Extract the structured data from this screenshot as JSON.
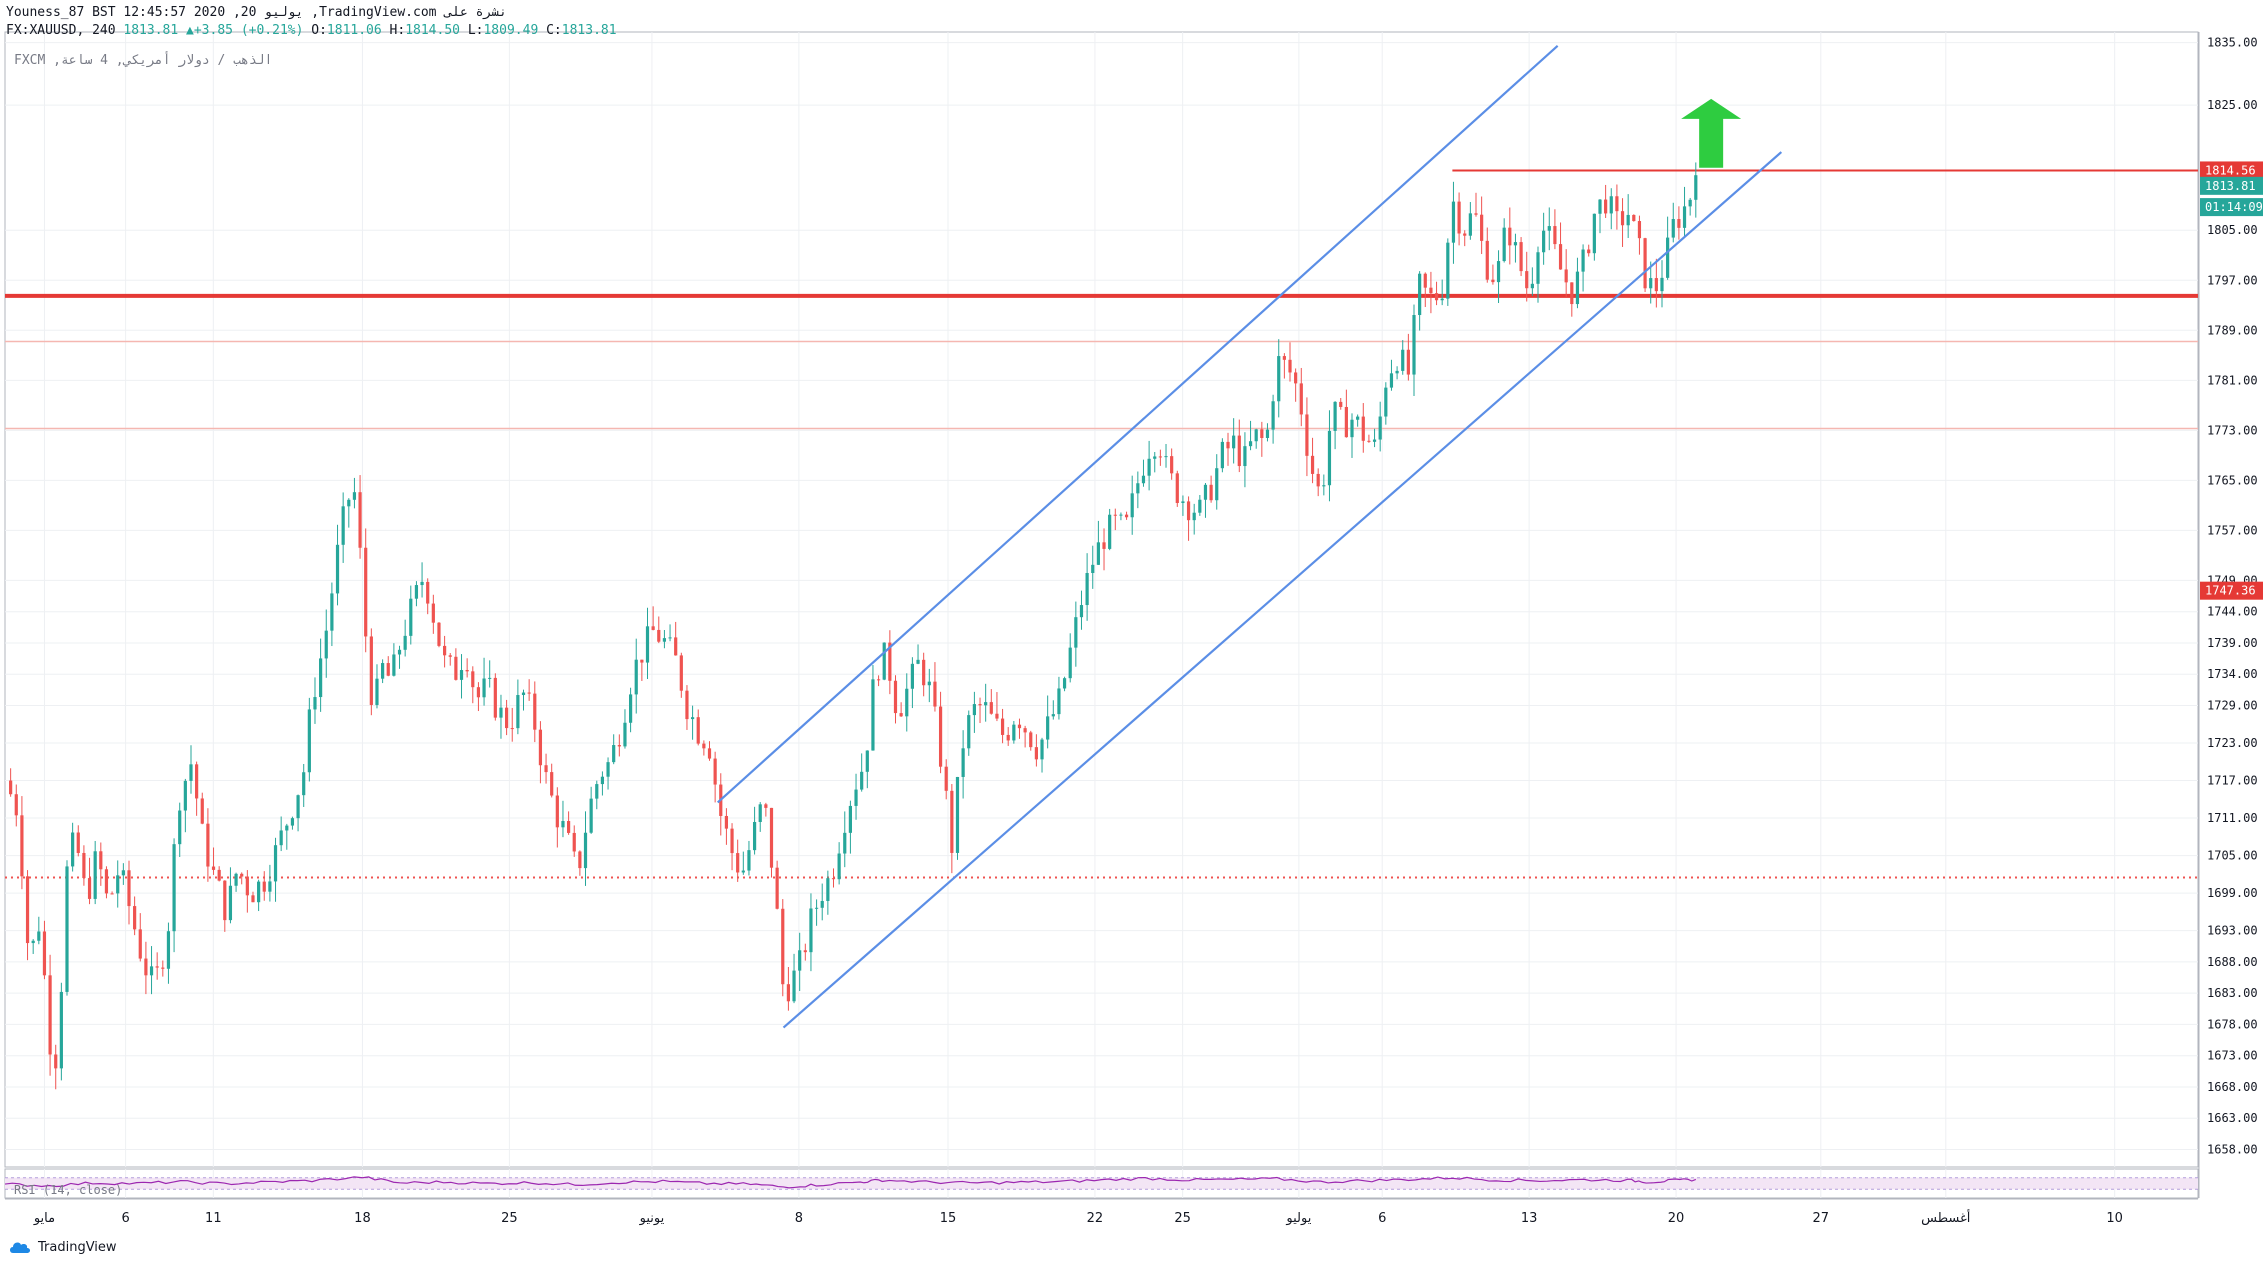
{
  "header": {
    "line1": "Youness_87 BST 12:45:57 2020 ,20 يوليو ,TradingView.com نشرة على",
    "symbol": "FX:XAUUSD, 240",
    "last": "1813.81",
    "change": "+3.85 (+0.21%)",
    "o_label": "O:",
    "o_val": "1811.06",
    "h_label": "H:",
    "h_val": "1814.50",
    "l_label": "L:",
    "l_val": "1809.49",
    "c_label": "C:",
    "c_val": "1813.81"
  },
  "pane_label": "FXCM ,الذهب / دولار أمريكي, 4 ساعة",
  "rsi_label": "RSI (14, close)",
  "brand": "TradingView",
  "colors": {
    "up": "#26a69a",
    "down": "#ef5350",
    "channel": "#5b8ee6",
    "support": "#e53935",
    "resistance": "#e53935",
    "arrow": "#2ecc40",
    "rsi": "#9c27b0",
    "rsi_band": "#f3e5f5",
    "grid": "#eef0f3"
  },
  "chart_data": {
    "type": "candlestick",
    "price_axis_ticks": [
      1835,
      1825,
      1814.56,
      1813.81,
      1805,
      1797,
      1789,
      1781,
      1773,
      1765,
      1757,
      1749,
      1747.36,
      1744,
      1739,
      1734,
      1729,
      1723,
      1717,
      1711,
      1705,
      1699,
      1693,
      1688,
      1683,
      1678,
      1673,
      1668,
      1663,
      1658
    ],
    "price_axis_labels": [
      "1835.00",
      "1825.00",
      "1805.00",
      "1797.00",
      "1789.00",
      "1781.00",
      "1773.00",
      "1765.00",
      "1757.00",
      "1749.00",
      "1744.00",
      "1739.00",
      "1734.00",
      "1729.00",
      "1723.00",
      "1717.00",
      "1711.00",
      "1705.00",
      "1699.00",
      "1693.00",
      "1688.00",
      "1683.00",
      "1678.00",
      "1673.00",
      "1668.00",
      "1663.00",
      "1658.00"
    ],
    "price_axis_values": [
      1835,
      1825,
      1805,
      1797,
      1789,
      1781,
      1773,
      1765,
      1757,
      1749,
      1744,
      1739,
      1734,
      1729,
      1723,
      1717,
      1711,
      1705,
      1699,
      1693,
      1688,
      1683,
      1678,
      1673,
      1668,
      1663,
      1658
    ],
    "tags": [
      {
        "label": "1814.56",
        "value": 1814.56,
        "color": "#e53935"
      },
      {
        "label": "1813.81",
        "value": 1812.1,
        "color": "#26a69a"
      },
      {
        "label": "01:14:09",
        "value": 1808.7,
        "color": "#26a69a"
      },
      {
        "label": "1747.36",
        "value": 1747.36,
        "color": "#e53935"
      }
    ],
    "time_axis": [
      {
        "label": "مايو",
        "pos": 0.018
      },
      {
        "label": "6",
        "pos": 0.055
      },
      {
        "label": "11",
        "pos": 0.095
      },
      {
        "label": "18",
        "pos": 0.163
      },
      {
        "label": "25",
        "pos": 0.23
      },
      {
        "label": "يونيو",
        "pos": 0.295
      },
      {
        "label": "8",
        "pos": 0.362
      },
      {
        "label": "15",
        "pos": 0.43
      },
      {
        "label": "22",
        "pos": 0.497
      },
      {
        "label": "25",
        "pos": 0.537
      },
      {
        "label": "يوليو",
        "pos": 0.59
      },
      {
        "label": "6",
        "pos": 0.628
      },
      {
        "label": "13",
        "pos": 0.695
      },
      {
        "label": "20",
        "pos": 0.762
      },
      {
        "label": "27",
        "pos": 0.828
      },
      {
        "label": "أغسطس",
        "pos": 0.885
      },
      {
        "label": "10",
        "pos": 0.962
      }
    ],
    "horizontal_lines": [
      {
        "value": 1814.56,
        "style": "thin",
        "color": "#e53935",
        "from": 0.66
      },
      {
        "value": 1794.5,
        "style": "thick",
        "color": "#e53935",
        "from": 0.0
      },
      {
        "value": 1787.2,
        "style": "faint",
        "color": "#f5b7b1",
        "from": 0.0
      },
      {
        "value": 1773.3,
        "style": "faint",
        "color": "#f5b7b1",
        "from": 0.0
      },
      {
        "value": 1701.5,
        "style": "dotted",
        "color": "#ef5350",
        "from": 0.0
      }
    ],
    "channel_lines": [
      {
        "t1": 0.355,
        "v1": 1677.5,
        "t2": 0.81,
        "v2": 1817.5
      },
      {
        "t1": 0.325,
        "v1": 1713.5,
        "t2": 0.708,
        "v2": 1834.5
      }
    ],
    "arrow": {
      "t": 0.778,
      "v_from": 1815,
      "v_to": 1826
    },
    "path": [
      [
        0.0,
        1717
      ],
      [
        0.006,
        1712
      ],
      [
        0.011,
        1688
      ],
      [
        0.016,
        1695
      ],
      [
        0.02,
        1676
      ],
      [
        0.024,
        1672
      ],
      [
        0.028,
        1702
      ],
      [
        0.032,
        1708
      ],
      [
        0.037,
        1698
      ],
      [
        0.042,
        1705
      ],
      [
        0.047,
        1697
      ],
      [
        0.052,
        1703
      ],
      [
        0.058,
        1695
      ],
      [
        0.063,
        1688
      ],
      [
        0.068,
        1684
      ],
      [
        0.074,
        1692
      ],
      [
        0.079,
        1714
      ],
      [
        0.085,
        1720
      ],
      [
        0.09,
        1708
      ],
      [
        0.095,
        1702
      ],
      [
        0.101,
        1696
      ],
      [
        0.106,
        1703
      ],
      [
        0.112,
        1699
      ],
      [
        0.118,
        1701
      ],
      [
        0.124,
        1706
      ],
      [
        0.13,
        1712
      ],
      [
        0.136,
        1718
      ],
      [
        0.14,
        1730
      ],
      [
        0.146,
        1740
      ],
      [
        0.151,
        1752
      ],
      [
        0.156,
        1762
      ],
      [
        0.16,
        1763
      ],
      [
        0.164,
        1742
      ],
      [
        0.168,
        1728
      ],
      [
        0.172,
        1735
      ],
      [
        0.176,
        1733
      ],
      [
        0.181,
        1740
      ],
      [
        0.186,
        1745
      ],
      [
        0.191,
        1750
      ],
      [
        0.195,
        1744
      ],
      [
        0.2,
        1736
      ],
      [
        0.205,
        1734
      ],
      [
        0.21,
        1738
      ],
      [
        0.215,
        1730
      ],
      [
        0.22,
        1732
      ],
      [
        0.225,
        1728
      ],
      [
        0.23,
        1726
      ],
      [
        0.236,
        1731
      ],
      [
        0.241,
        1727
      ],
      [
        0.246,
        1718
      ],
      [
        0.251,
        1712
      ],
      [
        0.256,
        1708
      ],
      [
        0.261,
        1702
      ],
      [
        0.266,
        1712
      ],
      [
        0.271,
        1718
      ],
      [
        0.276,
        1720
      ],
      [
        0.281,
        1726
      ],
      [
        0.286,
        1734
      ],
      [
        0.291,
        1738
      ],
      [
        0.296,
        1741
      ],
      [
        0.301,
        1739
      ],
      [
        0.306,
        1736
      ],
      [
        0.311,
        1729
      ],
      [
        0.316,
        1725
      ],
      [
        0.321,
        1723
      ],
      [
        0.326,
        1712
      ],
      [
        0.331,
        1706
      ],
      [
        0.336,
        1702
      ],
      [
        0.341,
        1708
      ],
      [
        0.346,
        1714
      ],
      [
        0.351,
        1700
      ],
      [
        0.355,
        1683
      ],
      [
        0.359,
        1685
      ],
      [
        0.363,
        1688
      ],
      [
        0.367,
        1694
      ],
      [
        0.372,
        1699
      ],
      [
        0.377,
        1702
      ],
      [
        0.382,
        1710
      ],
      [
        0.387,
        1716
      ],
      [
        0.392,
        1720
      ],
      [
        0.397,
        1735
      ],
      [
        0.402,
        1737
      ],
      [
        0.407,
        1728
      ],
      [
        0.412,
        1732
      ],
      [
        0.417,
        1736
      ],
      [
        0.422,
        1731
      ],
      [
        0.427,
        1720
      ],
      [
        0.432,
        1706
      ],
      [
        0.436,
        1722
      ],
      [
        0.441,
        1728
      ],
      [
        0.446,
        1729
      ],
      [
        0.451,
        1726
      ],
      [
        0.456,
        1724
      ],
      [
        0.461,
        1728
      ],
      [
        0.466,
        1725
      ],
      [
        0.471,
        1722
      ],
      [
        0.476,
        1726
      ],
      [
        0.481,
        1730
      ],
      [
        0.486,
        1738
      ],
      [
        0.491,
        1746
      ],
      [
        0.496,
        1752
      ],
      [
        0.501,
        1756
      ],
      [
        0.506,
        1758
      ],
      [
        0.511,
        1757
      ],
      [
        0.516,
        1764
      ],
      [
        0.521,
        1770
      ],
      [
        0.526,
        1772
      ],
      [
        0.53,
        1766
      ],
      [
        0.535,
        1763
      ],
      [
        0.54,
        1761
      ],
      [
        0.545,
        1760
      ],
      [
        0.55,
        1764
      ],
      [
        0.555,
        1769
      ],
      [
        0.56,
        1771
      ],
      [
        0.565,
        1768
      ],
      [
        0.57,
        1772
      ],
      [
        0.575,
        1771
      ],
      [
        0.58,
        1784
      ],
      [
        0.585,
        1783
      ],
      [
        0.59,
        1779
      ],
      [
        0.595,
        1768
      ],
      [
        0.6,
        1762
      ],
      [
        0.605,
        1776
      ],
      [
        0.61,
        1774
      ],
      [
        0.615,
        1775
      ],
      [
        0.62,
        1772
      ],
      [
        0.625,
        1770
      ],
      [
        0.63,
        1782
      ],
      [
        0.635,
        1785
      ],
      [
        0.64,
        1782
      ],
      [
        0.645,
        1796
      ],
      [
        0.65,
        1794
      ],
      [
        0.655,
        1795
      ],
      [
        0.66,
        1810
      ],
      [
        0.665,
        1805
      ],
      [
        0.67,
        1808
      ],
      [
        0.675,
        1800
      ],
      [
        0.68,
        1797
      ],
      [
        0.685,
        1806
      ],
      [
        0.69,
        1800
      ],
      [
        0.695,
        1795
      ],
      [
        0.7,
        1806
      ],
      [
        0.705,
        1803
      ],
      [
        0.71,
        1798
      ],
      [
        0.715,
        1795
      ],
      [
        0.72,
        1800
      ],
      [
        0.725,
        1808
      ],
      [
        0.73,
        1810
      ],
      [
        0.735,
        1806
      ],
      [
        0.74,
        1808
      ],
      [
        0.745,
        1802
      ],
      [
        0.749,
        1796
      ],
      [
        0.753,
        1796
      ],
      [
        0.757,
        1800
      ],
      [
        0.761,
        1806
      ],
      [
        0.765,
        1808
      ],
      [
        0.768,
        1810
      ],
      [
        0.771,
        1813.8
      ]
    ],
    "rsi_path": [
      [
        0.0,
        48
      ],
      [
        0.02,
        42
      ],
      [
        0.04,
        52
      ],
      [
        0.06,
        50
      ],
      [
        0.08,
        56
      ],
      [
        0.1,
        49
      ],
      [
        0.12,
        55
      ],
      [
        0.14,
        60
      ],
      [
        0.163,
        72
      ],
      [
        0.18,
        52
      ],
      [
        0.2,
        55
      ],
      [
        0.22,
        50
      ],
      [
        0.24,
        53
      ],
      [
        0.26,
        46
      ],
      [
        0.28,
        54
      ],
      [
        0.3,
        57
      ],
      [
        0.32,
        50
      ],
      [
        0.34,
        48
      ],
      [
        0.355,
        38
      ],
      [
        0.37,
        45
      ],
      [
        0.39,
        55
      ],
      [
        0.4,
        62
      ],
      [
        0.42,
        55
      ],
      [
        0.44,
        52
      ],
      [
        0.46,
        54
      ],
      [
        0.48,
        56
      ],
      [
        0.5,
        62
      ],
      [
        0.52,
        68
      ],
      [
        0.54,
        62
      ],
      [
        0.56,
        64
      ],
      [
        0.58,
        66
      ],
      [
        0.6,
        55
      ],
      [
        0.62,
        60
      ],
      [
        0.64,
        64
      ],
      [
        0.66,
        70
      ],
      [
        0.68,
        62
      ],
      [
        0.7,
        60
      ],
      [
        0.72,
        63
      ],
      [
        0.74,
        61
      ],
      [
        0.75,
        55
      ],
      [
        0.76,
        60
      ],
      [
        0.771,
        64
      ]
    ]
  }
}
